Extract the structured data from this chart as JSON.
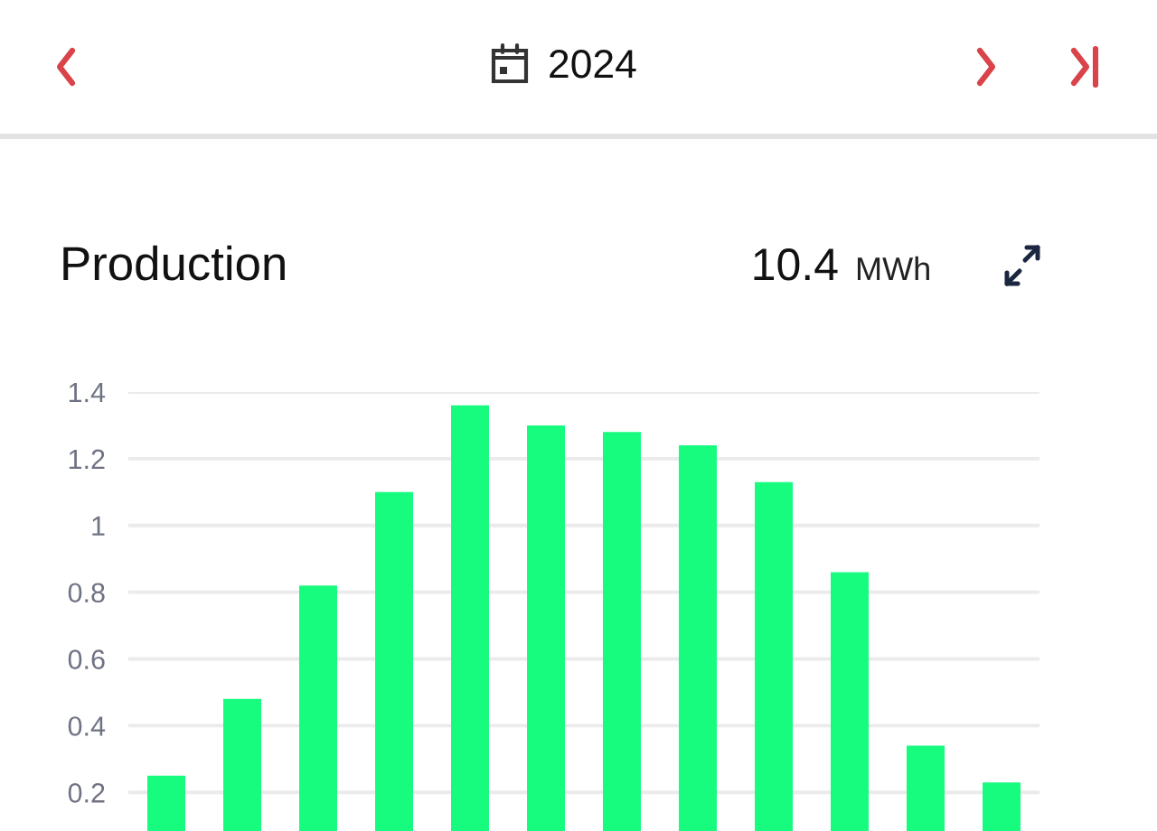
{
  "chart_data": {
    "type": "bar",
    "title": "Production",
    "annotations": [
      "2024",
      "10.4",
      "MWh"
    ],
    "categories": [
      null,
      null,
      null,
      null,
      null,
      null,
      null,
      null,
      null,
      null,
      null,
      null
    ],
    "values": [
      0.25,
      0.48,
      0.82,
      1.1,
      1.36,
      1.3,
      1.28,
      1.24,
      1.13,
      0.86,
      0.34,
      0.23
    ],
    "color": "#17fc7f",
    "ylim": [
      0,
      1.4
    ],
    "yticks": [
      0.2,
      0.4,
      0.6,
      0.8,
      1,
      1.2,
      1.4
    ],
    "grid": "y",
    "tick_labels": "y"
  }
}
